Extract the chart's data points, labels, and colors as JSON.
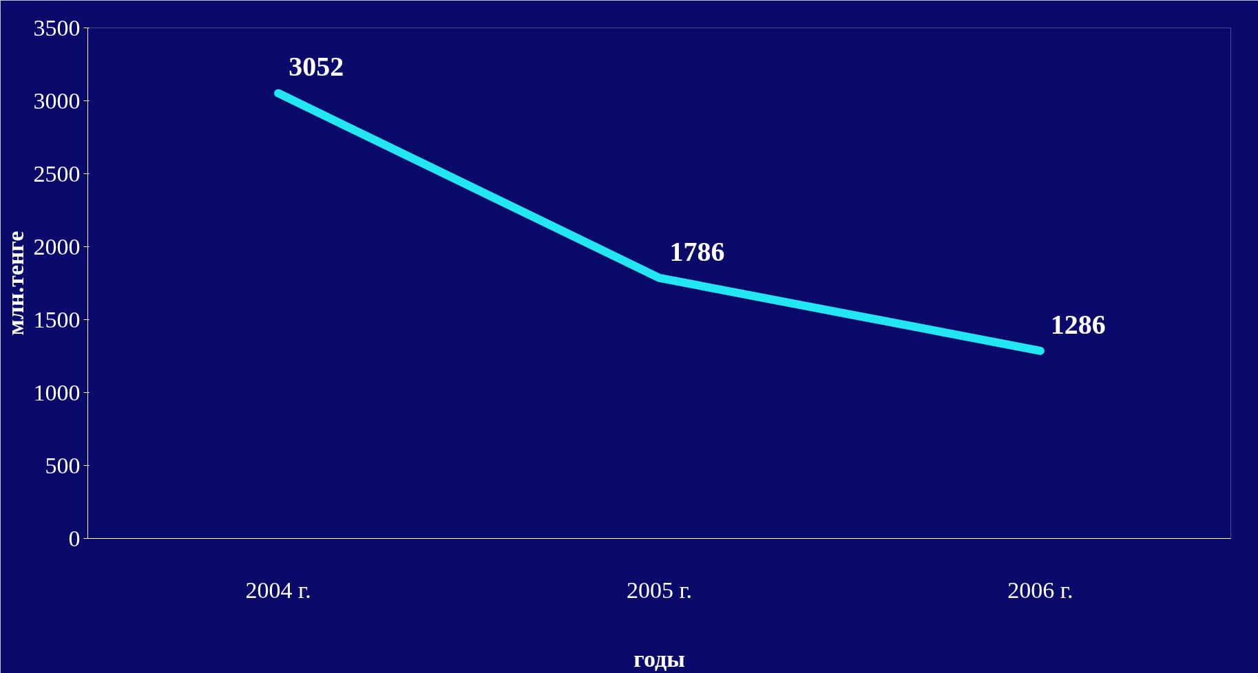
{
  "chart_data": {
    "type": "line",
    "xlabel": "годы",
    "ylabel": "млн.тенге",
    "categories": [
      "2004 г.",
      "2005 г.",
      "2006 г."
    ],
    "series": [
      {
        "color": "#22e6f2",
        "values": [
          3052,
          1786,
          1286
        ]
      }
    ],
    "ylim": [
      0,
      3500
    ],
    "yticks": [
      0,
      500,
      1000,
      1500,
      2000,
      2500,
      3000,
      3500
    ],
    "data_labels": true,
    "grid": false,
    "marker": "none",
    "line_style": "solid"
  }
}
